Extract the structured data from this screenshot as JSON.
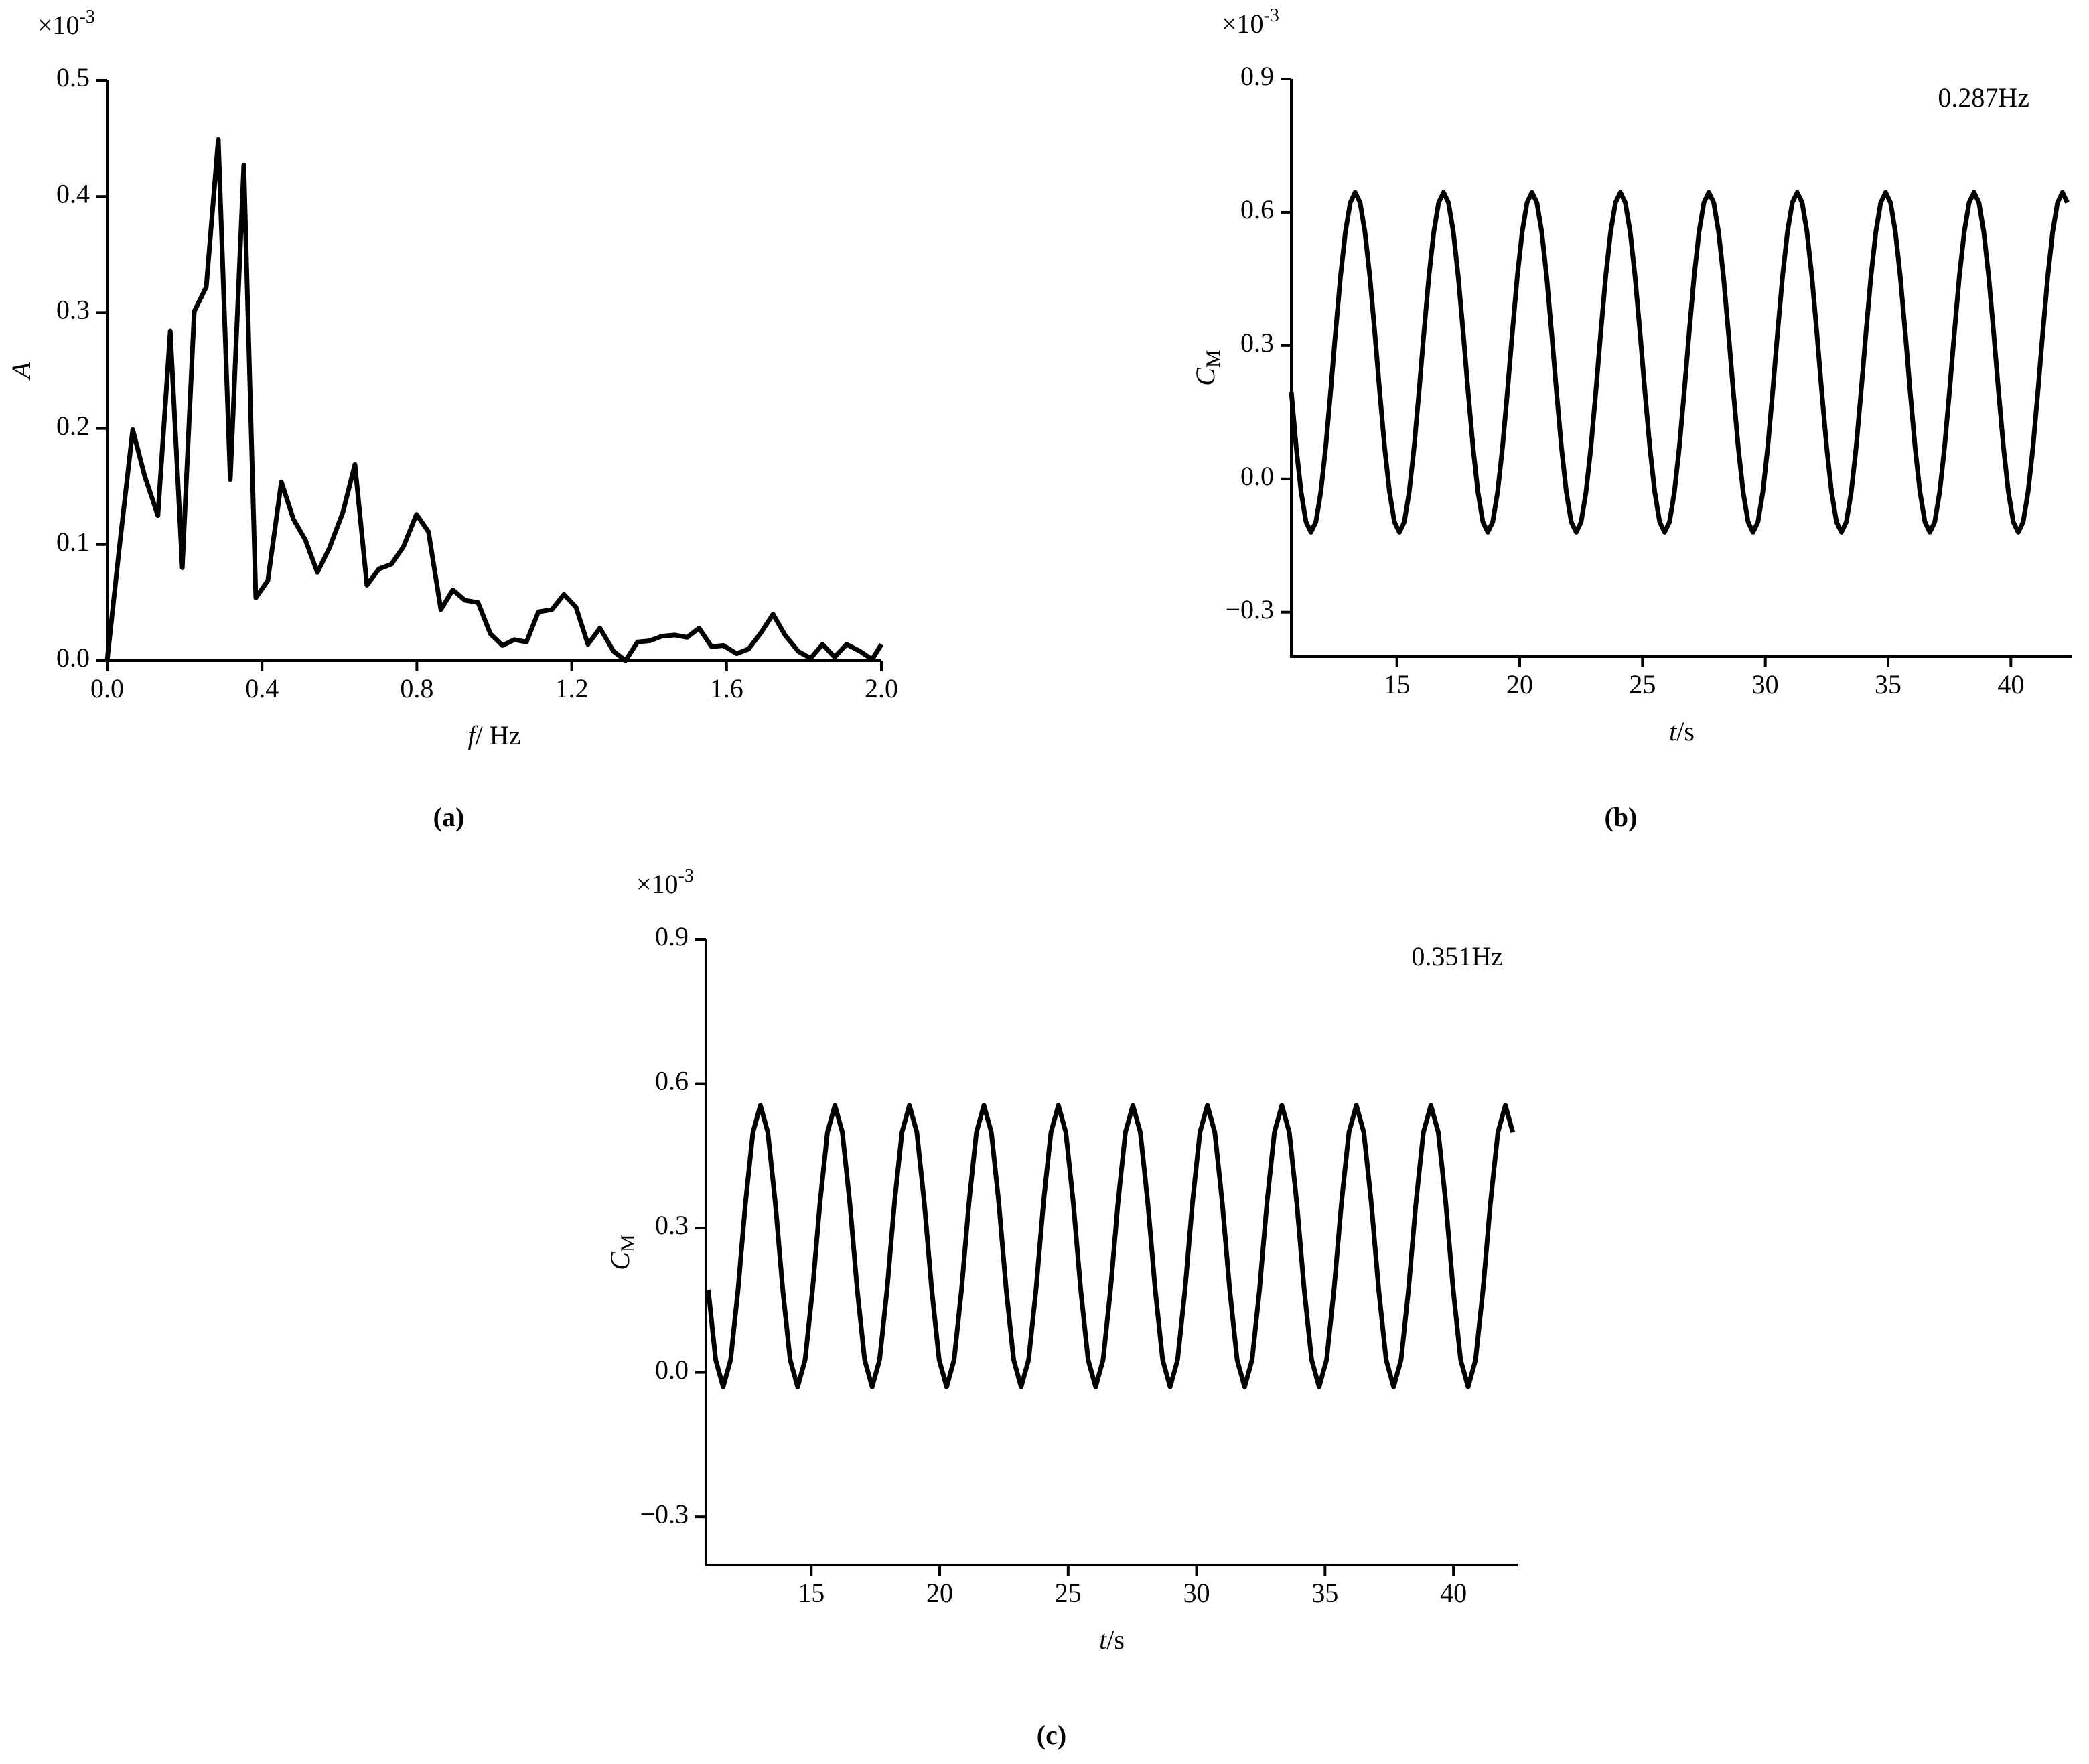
{
  "chart_data": [
    {
      "type": "line",
      "panel_label": "(a)",
      "xlabel": "f",
      "xlabel_unit": "/ Hz",
      "ylabel": "A",
      "y_multiplier": "×10",
      "y_multiplier_exp": "-3",
      "color": "#000000",
      "xlim": [
        0,
        2.0
      ],
      "ylim": [
        0,
        0.5
      ],
      "xticks": [
        {
          "value": 0,
          "label": "0.0"
        },
        0.4,
        0.8,
        1.2,
        1.6,
        {
          "value": 2,
          "label": "2.0"
        }
      ],
      "yticks": [
        {
          "value": 0,
          "label": "0.0"
        },
        0.1,
        0.2,
        0.3,
        0.4,
        0.5
      ],
      "x": [
        0,
        0.031,
        0.066,
        0.097,
        0.131,
        0.163,
        0.194,
        0.225,
        0.256,
        0.287,
        0.318,
        0.353,
        0.384,
        0.415,
        0.45,
        0.481,
        0.512,
        0.543,
        0.574,
        0.609,
        0.64,
        0.671,
        0.702,
        0.734,
        0.765,
        0.799,
        0.83,
        0.862,
        0.893,
        0.924,
        0.958,
        0.99,
        1.021,
        1.052,
        1.083,
        1.114,
        1.149,
        1.18,
        1.211,
        1.242,
        1.273,
        1.308,
        1.339,
        1.37,
        1.401,
        1.433,
        1.467,
        1.498,
        1.529,
        1.561,
        1.592,
        1.626,
        1.657,
        1.689,
        1.72,
        1.751,
        1.785,
        1.817,
        1.848,
        1.879,
        1.91,
        1.945,
        1.976,
        2.0
      ],
      "values": [
        0,
        0.096,
        0.199,
        0.159,
        0.125,
        0.284,
        0.08,
        0.301,
        0.322,
        0.449,
        0.156,
        0.427,
        0.054,
        0.069,
        0.154,
        0.122,
        0.104,
        0.076,
        0.097,
        0.128,
        0.169,
        0.065,
        0.079,
        0.083,
        0.098,
        0.126,
        0.111,
        0.044,
        0.061,
        0.052,
        0.05,
        0.023,
        0.013,
        0.018,
        0.016,
        0.042,
        0.044,
        0.057,
        0.046,
        0.014,
        0.028,
        0.008,
        0,
        0.016,
        0.017,
        0.021,
        0.022,
        0.02,
        0.028,
        0.012,
        0.013,
        0.006,
        0.01,
        0.024,
        0.04,
        0.022,
        0.008,
        0.002,
        0.014,
        0.003,
        0.014,
        0.008,
        0.001,
        0.014
      ]
    },
    {
      "type": "line",
      "panel_label": "(b)",
      "annotation": "0.287Hz",
      "xlabel": "t",
      "xlabel_unit": "/s",
      "ylabel": "C",
      "ylabel_sub": "M",
      "y_multiplier": "×10",
      "y_multiplier_exp": "-3",
      "color": "#000000",
      "xlim": [
        10.7,
        42.5
      ],
      "ylim": [
        -0.4,
        0.9
      ],
      "xticks": [
        15,
        20,
        25,
        30,
        35,
        40
      ],
      "yticks": [
        {
          "value": -0.3,
          "label": "−0.3"
        },
        {
          "value": 0,
          "label": "0.0"
        },
        0.3,
        0.6,
        0.9
      ],
      "x": [
        10.7,
        10.9,
        11.1,
        11.3,
        11.5,
        11.7,
        11.9,
        12.1,
        12.3,
        12.5,
        12.7,
        12.9,
        13.1,
        13.3,
        13.5,
        13.7,
        13.9,
        14.1,
        14.3,
        14.5,
        14.7,
        14.9,
        15.1,
        15.3,
        15.5,
        15.7,
        15.9,
        16.1,
        16.3,
        16.5,
        16.7,
        16.9,
        17.1,
        17.3,
        17.5,
        17.7,
        17.9,
        18.1,
        18.3,
        18.5,
        18.7,
        18.9,
        19.1,
        19.3,
        19.5,
        19.7,
        19.9,
        20.1,
        20.3,
        20.5,
        20.7,
        20.9,
        21.1,
        21.3,
        21.5,
        21.7,
        21.9,
        22.1,
        22.3,
        22.5,
        22.7,
        22.9,
        23.1,
        23.3,
        23.5,
        23.7,
        23.9,
        24.1,
        24.3,
        24.5,
        24.7,
        24.9,
        25.1,
        25.3,
        25.5,
        25.7,
        25.9,
        26.1,
        26.3,
        26.5,
        26.7,
        26.9,
        27.1,
        27.3,
        27.5,
        27.7,
        27.9,
        28.1,
        28.3,
        28.5,
        28.7,
        28.9,
        29.1,
        29.3,
        29.5,
        29.7,
        29.9,
        30.1,
        30.3,
        30.5,
        30.7,
        30.9,
        31.1,
        31.3,
        31.5,
        31.7,
        31.9,
        32.1,
        32.3,
        32.5,
        32.7,
        32.9,
        33.1,
        33.3,
        33.5,
        33.7,
        33.9,
        34.1,
        34.3,
        34.5,
        34.7,
        34.9,
        35.1,
        35.3,
        35.5,
        35.7,
        35.9,
        36.1,
        36.3,
        36.5,
        36.7,
        36.9,
        37.1,
        37.3,
        37.5,
        37.7,
        37.9,
        38.1,
        38.3,
        38.5,
        38.7,
        38.9,
        39.1,
        39.3,
        39.5,
        39.7,
        39.9,
        40.1,
        40.3,
        40.5,
        40.7,
        40.9,
        41.1,
        41.3,
        41.5,
        41.7,
        41.9,
        42.1,
        42.3
      ],
      "values": [
        0.196,
        0.071,
        -0.03,
        -0.097,
        -0.12,
        -0.097,
        -0.03,
        0.071,
        0.196,
        0.329,
        0.454,
        0.555,
        0.622,
        0.645,
        0.622,
        0.555,
        0.454,
        0.329,
        0.196,
        0.071,
        -0.03,
        -0.097,
        -0.12,
        -0.097,
        -0.03,
        0.071,
        0.196,
        0.329,
        0.454,
        0.555,
        0.622,
        0.645,
        0.622,
        0.555,
        0.454,
        0.329,
        0.196,
        0.071,
        -0.03,
        -0.097,
        -0.12,
        -0.097,
        -0.03,
        0.071,
        0.196,
        0.329,
        0.454,
        0.555,
        0.622,
        0.645,
        0.622,
        0.555,
        0.454,
        0.329,
        0.196,
        0.071,
        -0.03,
        -0.097,
        -0.12,
        -0.097,
        -0.03,
        0.071,
        0.196,
        0.329,
        0.454,
        0.555,
        0.622,
        0.645,
        0.622,
        0.555,
        0.454,
        0.329,
        0.196,
        0.071,
        -0.03,
        -0.097,
        -0.12,
        -0.097,
        -0.03,
        0.071,
        0.196,
        0.329,
        0.454,
        0.555,
        0.622,
        0.645,
        0.622,
        0.555,
        0.454,
        0.329,
        0.196,
        0.071,
        -0.03,
        -0.097,
        -0.12,
        -0.097,
        -0.03,
        0.071,
        0.196,
        0.329,
        0.454,
        0.555,
        0.622,
        0.645,
        0.622,
        0.555,
        0.454,
        0.329,
        0.196,
        0.071,
        -0.03,
        -0.097,
        -0.12,
        -0.097,
        -0.03,
        0.071,
        0.196,
        0.329,
        0.454,
        0.555,
        0.622,
        0.645,
        0.622,
        0.555,
        0.454,
        0.329,
        0.196,
        0.071,
        -0.03,
        -0.097,
        -0.12,
        -0.097,
        -0.03,
        0.071,
        0.196,
        0.329,
        0.454,
        0.555,
        0.622,
        0.645,
        0.622,
        0.555,
        0.454,
        0.329,
        0.196,
        0.071,
        -0.03,
        -0.097,
        -0.12,
        -0.097,
        -0.03,
        0.071,
        0.196,
        0.329,
        0.454,
        0.555,
        0.622,
        0.645,
        0.622
      ]
    },
    {
      "type": "line",
      "panel_label": "(c)",
      "annotation": "0.351Hz",
      "xlabel": "t",
      "xlabel_unit": "/s",
      "ylabel": "C",
      "ylabel_sub": "M",
      "y_multiplier": "×10",
      "y_multiplier_exp": "-3",
      "color": "#000000",
      "xlim": [
        10.9,
        42.5
      ],
      "ylim": [
        -0.4,
        0.9
      ],
      "xticks": [
        15,
        20,
        25,
        30,
        35,
        40
      ],
      "yticks": [
        {
          "value": -0.3,
          "label": "−0.3"
        },
        {
          "value": 0,
          "label": "0.0"
        },
        0.3,
        0.6,
        0.9
      ],
      "x": [
        10.99,
        11.28,
        11.57,
        11.86,
        12.15,
        12.44,
        12.73,
        13.02,
        13.31,
        13.6,
        13.89,
        14.18,
        14.47,
        14.76,
        15.05,
        15.34,
        15.63,
        15.92,
        16.21,
        16.5,
        16.79,
        17.08,
        17.37,
        17.66,
        17.95,
        18.24,
        18.53,
        18.82,
        19.11,
        19.4,
        19.69,
        19.98,
        20.27,
        20.56,
        20.85,
        21.14,
        21.43,
        21.72,
        22.01,
        22.3,
        22.59,
        22.88,
        23.17,
        23.46,
        23.75,
        24.04,
        24.33,
        24.62,
        24.91,
        25.2,
        25.49,
        25.78,
        26.07,
        26.36,
        26.65,
        26.94,
        27.23,
        27.52,
        27.81,
        28.1,
        28.39,
        28.68,
        28.97,
        29.26,
        29.55,
        29.84,
        30.13,
        30.42,
        30.71,
        31.0,
        31.29,
        31.58,
        31.87,
        32.16,
        32.45,
        32.74,
        33.03,
        33.32,
        33.61,
        33.9,
        34.19,
        34.48,
        34.77,
        35.06,
        35.35,
        35.64,
        35.93,
        36.22,
        36.51,
        36.8,
        37.09,
        37.38,
        37.67,
        37.96,
        38.25,
        38.54,
        38.83,
        39.12,
        39.41,
        39.7,
        39.99,
        40.28,
        40.57,
        40.86,
        41.15,
        41.44,
        41.73,
        42.02,
        42.31
      ],
      "values": [
        0.172,
        0.026,
        -0.03,
        0.026,
        0.172,
        0.353,
        0.499,
        0.555,
        0.499,
        0.353,
        0.172,
        0.026,
        -0.03,
        0.026,
        0.172,
        0.353,
        0.499,
        0.555,
        0.499,
        0.353,
        0.172,
        0.026,
        -0.03,
        0.026,
        0.172,
        0.353,
        0.499,
        0.555,
        0.499,
        0.353,
        0.172,
        0.026,
        -0.03,
        0.026,
        0.172,
        0.353,
        0.499,
        0.555,
        0.499,
        0.353,
        0.172,
        0.026,
        -0.03,
        0.026,
        0.172,
        0.353,
        0.499,
        0.555,
        0.499,
        0.353,
        0.172,
        0.026,
        -0.03,
        0.026,
        0.172,
        0.353,
        0.499,
        0.555,
        0.499,
        0.353,
        0.172,
        0.026,
        -0.03,
        0.026,
        0.172,
        0.353,
        0.499,
        0.555,
        0.499,
        0.353,
        0.172,
        0.026,
        -0.03,
        0.026,
        0.172,
        0.353,
        0.499,
        0.555,
        0.499,
        0.353,
        0.172,
        0.026,
        -0.03,
        0.026,
        0.172,
        0.353,
        0.499,
        0.555,
        0.499,
        0.353,
        0.172,
        0.026,
        -0.03,
        0.026,
        0.172,
        0.353,
        0.499,
        0.555,
        0.499,
        0.353,
        0.172,
        0.026,
        -0.03,
        0.026,
        0.172,
        0.353,
        0.499,
        0.555,
        0.499
      ]
    }
  ]
}
